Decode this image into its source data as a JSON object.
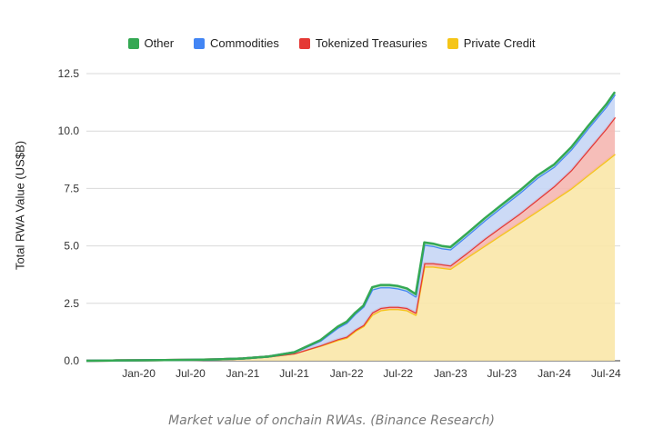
{
  "chart_data": {
    "type": "area",
    "stacked": true,
    "ylabel": "Total RWA Value (US$B)",
    "ylim": [
      0,
      12.5
    ],
    "yticks": [
      "0.0",
      "2.5",
      "5.0",
      "7.5",
      "10.0",
      "12.5"
    ],
    "xticks": [
      "Jan-20",
      "Jul-20",
      "Jan-21",
      "Jul-21",
      "Jan-22",
      "Jul-22",
      "Jan-23",
      "Jul-23",
      "Jan-24",
      "Jul-24"
    ],
    "grid": true,
    "legend_position": "top",
    "x": [
      "2019-07",
      "2019-10",
      "2020-01",
      "2020-04",
      "2020-07",
      "2020-10",
      "2021-01",
      "2021-04",
      "2021-07",
      "2021-10",
      "2021-12",
      "2022-01",
      "2022-02",
      "2022-03",
      "2022-04",
      "2022-05",
      "2022-06",
      "2022-07",
      "2022-08",
      "2022-09",
      "2022-10",
      "2022-11",
      "2022-12",
      "2023-01",
      "2023-03",
      "2023-05",
      "2023-07",
      "2023-09",
      "2023-11",
      "2024-01",
      "2024-03",
      "2024-05",
      "2024-07",
      "2024-08"
    ],
    "series": [
      {
        "name": "Private Credit",
        "color": "#f5c518",
        "values": [
          0,
          0.01,
          0.02,
          0.03,
          0.04,
          0.06,
          0.1,
          0.18,
          0.32,
          0.65,
          0.9,
          1.0,
          1.3,
          1.5,
          2.0,
          2.2,
          2.25,
          2.25,
          2.2,
          2.0,
          4.1,
          4.1,
          4.05,
          4.0,
          4.5,
          5.0,
          5.5,
          6.0,
          6.5,
          7.0,
          7.5,
          8.1,
          8.7,
          9.0
        ]
      },
      {
        "name": "Tokenized Treasuries",
        "color": "#e53935",
        "values": [
          0,
          0,
          0,
          0,
          0,
          0,
          0,
          0,
          0,
          0.02,
          0.04,
          0.05,
          0.05,
          0.05,
          0.1,
          0.1,
          0.1,
          0.1,
          0.1,
          0.1,
          0.15,
          0.15,
          0.15,
          0.15,
          0.2,
          0.3,
          0.35,
          0.4,
          0.5,
          0.6,
          0.8,
          1.1,
          1.4,
          1.6
        ]
      },
      {
        "name": "Commodities",
        "color": "#4285f4",
        "values": [
          0,
          0,
          0,
          0,
          0,
          0,
          0,
          0,
          0.05,
          0.2,
          0.5,
          0.6,
          0.7,
          0.8,
          1.0,
          0.9,
          0.85,
          0.8,
          0.75,
          0.7,
          0.8,
          0.75,
          0.7,
          0.7,
          0.75,
          0.8,
          0.85,
          0.9,
          0.95,
          0.85,
          0.9,
          0.95,
          0.95,
          1.0
        ]
      },
      {
        "name": "Other",
        "color": "#34a853",
        "values": [
          0,
          0,
          0,
          0,
          0,
          0,
          0,
          0,
          0,
          0.03,
          0.05,
          0.05,
          0.05,
          0.05,
          0.1,
          0.1,
          0.1,
          0.1,
          0.1,
          0.1,
          0.1,
          0.1,
          0.1,
          0.1,
          0.1,
          0.1,
          0.1,
          0.1,
          0.1,
          0.1,
          0.1,
          0.1,
          0.1,
          0.1
        ]
      }
    ]
  },
  "legend": [
    {
      "label": "Other",
      "color": "#34a853"
    },
    {
      "label": "Commodities",
      "color": "#4285f4"
    },
    {
      "label": "Tokenized Treasuries",
      "color": "#e53935"
    },
    {
      "label": "Private Credit",
      "color": "#f5c518"
    }
  ],
  "caption": "Market value of onchain RWAs. (Binance Research)"
}
